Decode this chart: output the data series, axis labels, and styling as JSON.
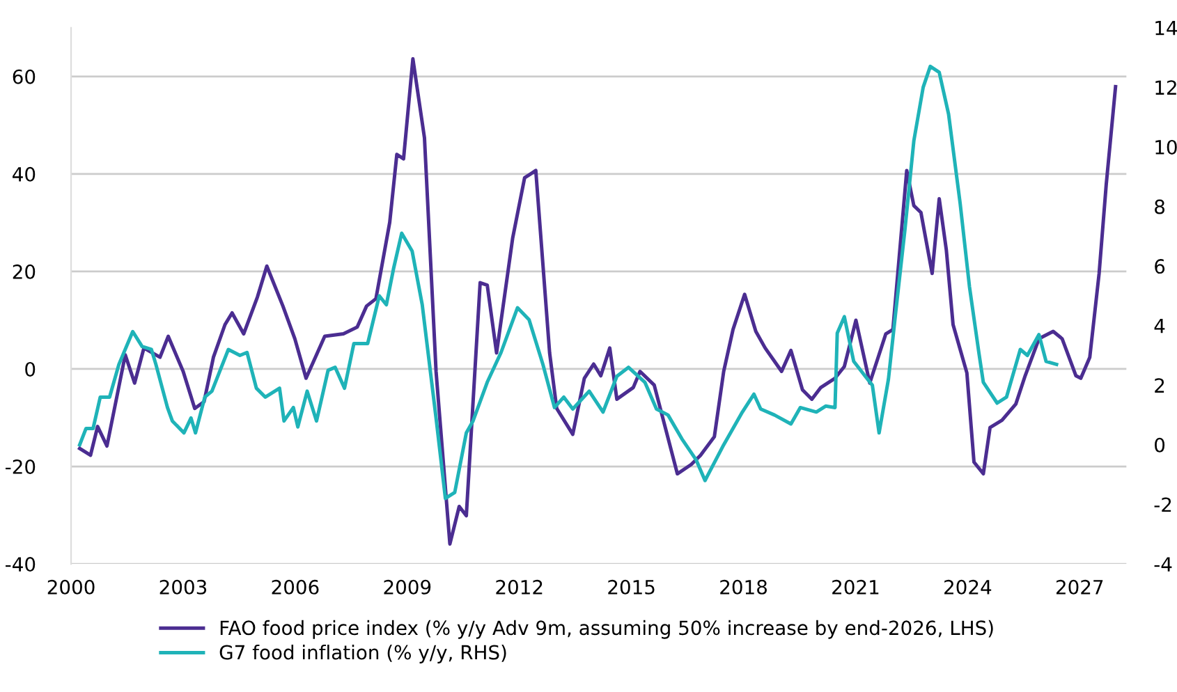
{
  "chart_data": {
    "type": "line",
    "xlim": [
      2000,
      2028.25
    ],
    "xticks": [
      2000,
      2003,
      2006,
      2009,
      2012,
      2015,
      2018,
      2021,
      2024,
      2027
    ],
    "ylim": [
      -40,
      70
    ],
    "yticks": [
      -40,
      -20,
      0,
      20,
      40,
      60
    ],
    "y2lim": [
      -4,
      14
    ],
    "y2ticks": [
      -4,
      -2,
      0,
      2,
      4,
      6,
      8,
      10,
      12,
      14
    ],
    "grid": "y",
    "legend": "bottom",
    "line_style": "solid",
    "marker": "none",
    "series": [
      {
        "name": "FAO food price index (% y/y Adv 9m, assuming 50% increase by end-2026, LHS)",
        "color": "#4b2d91",
        "x": [
          2000.23,
          2000.52,
          2000.71,
          2000.96,
          2001.45,
          2001.7,
          2001.95,
          2002.38,
          2002.6,
          2003.0,
          2003.31,
          2003.56,
          2003.81,
          2004.12,
          2004.31,
          2004.62,
          2004.99,
          2005.24,
          2005.67,
          2005.99,
          2006.29,
          2006.79,
          2007.29,
          2007.66,
          2007.91,
          2008.16,
          2008.53,
          2008.72,
          2008.9,
          2009.15,
          2009.46,
          2009.77,
          2010.14,
          2010.39,
          2010.58,
          2010.95,
          2011.14,
          2011.39,
          2011.82,
          2012.14,
          2012.44,
          2012.81,
          2013.0,
          2013.43,
          2013.74,
          2013.99,
          2014.18,
          2014.42,
          2014.61,
          2015.05,
          2015.23,
          2015.61,
          2016.23,
          2016.6,
          2016.85,
          2017.22,
          2017.47,
          2017.72,
          2018.03,
          2018.33,
          2018.58,
          2019.02,
          2019.27,
          2019.58,
          2019.83,
          2020.07,
          2020.45,
          2020.7,
          2021.01,
          2021.38,
          2021.81,
          2022.0,
          2022.37,
          2022.56,
          2022.75,
          2023.05,
          2023.24,
          2023.43,
          2023.61,
          2023.98,
          2024.17,
          2024.42,
          2024.6,
          2024.92,
          2025.29,
          2025.54,
          2025.91,
          2026.29,
          2026.53,
          2026.9,
          2027.03,
          2027.27,
          2027.52,
          2027.71,
          2027.96
        ],
        "values": [
          -16.3,
          -17.7,
          -11.8,
          -15.8,
          2.9,
          -2.9,
          4.3,
          2.4,
          6.7,
          -0.5,
          -8.1,
          -6.7,
          2.4,
          9.1,
          11.5,
          7.2,
          14.8,
          21.1,
          12.9,
          6.2,
          -1.9,
          6.7,
          7.2,
          8.6,
          12.9,
          14.4,
          30.1,
          44.0,
          43.1,
          63.6,
          47.4,
          -0.5,
          -35.9,
          -28.2,
          -30.1,
          17.7,
          17.2,
          3.3,
          26.8,
          39.2,
          40.7,
          3.3,
          -8.1,
          -13.4,
          -1.9,
          1.0,
          -1.4,
          4.3,
          -6.2,
          -3.8,
          -0.5,
          -3.3,
          -21.5,
          -19.6,
          -17.7,
          -13.9,
          -0.5,
          8.1,
          15.3,
          7.7,
          4.3,
          -0.5,
          3.8,
          -4.3,
          -6.2,
          -3.8,
          -1.9,
          0.5,
          10.0,
          -2.9,
          7.2,
          8.1,
          40.7,
          33.5,
          32.1,
          19.6,
          34.9,
          24.4,
          9.1,
          -0.8,
          -19.1,
          -21.5,
          -12.0,
          -10.5,
          -7.2,
          -1.4,
          6.2,
          7.7,
          6.2,
          -1.4,
          -1.9,
          2.4,
          19.6,
          37.8,
          57.9
        ]
      },
      {
        "name": "G7 food inflation (% y/y, RHS)",
        "color": "#1fb3b8",
        "axis": "y2",
        "x": [
          2000.23,
          2000.4,
          2000.59,
          2000.78,
          2001.03,
          2001.28,
          2001.65,
          2001.9,
          2002.15,
          2002.27,
          2002.58,
          2002.71,
          2003.02,
          2003.21,
          2003.33,
          2003.58,
          2003.77,
          2004.21,
          2004.52,
          2004.71,
          2004.96,
          2005.2,
          2005.58,
          2005.7,
          2005.95,
          2006.07,
          2006.32,
          2006.57,
          2006.88,
          2007.07,
          2007.32,
          2007.57,
          2007.94,
          2008.25,
          2008.44,
          2008.63,
          2008.85,
          2009.13,
          2009.4,
          2009.77,
          2010.02,
          2010.27,
          2010.58,
          2010.76,
          2011.14,
          2011.51,
          2011.95,
          2012.26,
          2012.63,
          2012.94,
          2013.19,
          2013.43,
          2013.87,
          2014.24,
          2014.61,
          2014.92,
          2015.36,
          2015.67,
          2015.98,
          2016.35,
          2016.73,
          2016.97,
          2017.47,
          2017.97,
          2018.28,
          2018.46,
          2018.83,
          2019.27,
          2019.52,
          2019.95,
          2020.2,
          2020.45,
          2020.51,
          2020.7,
          2020.95,
          2021.26,
          2021.45,
          2021.63,
          2021.88,
          2022.07,
          2022.32,
          2022.56,
          2022.81,
          2023.0,
          2023.24,
          2023.49,
          2023.8,
          2024.05,
          2024.3,
          2024.42,
          2024.79,
          2025.04,
          2025.41,
          2025.6,
          2025.91,
          2026.1,
          2026.38
        ],
        "values": [
          0.0,
          0.55,
          0.55,
          1.6,
          1.6,
          2.7,
          3.8,
          3.3,
          3.2,
          2.7,
          1.25,
          0.8,
          0.4,
          0.9,
          0.4,
          1.6,
          1.8,
          3.2,
          3.0,
          3.1,
          1.9,
          1.6,
          1.9,
          0.8,
          1.25,
          0.6,
          1.8,
          0.8,
          2.5,
          2.6,
          1.9,
          3.4,
          3.4,
          5.0,
          4.7,
          5.9,
          7.1,
          6.5,
          4.7,
          0.9,
          -1.8,
          -1.6,
          0.4,
          0.8,
          2.1,
          3.1,
          4.6,
          4.2,
          2.7,
          1.25,
          1.6,
          1.2,
          1.8,
          1.1,
          2.3,
          2.6,
          2.1,
          1.2,
          1.0,
          0.2,
          -0.5,
          -1.2,
          0.0,
          1.1,
          1.7,
          1.2,
          1.0,
          0.7,
          1.25,
          1.1,
          1.3,
          1.25,
          3.75,
          4.3,
          2.8,
          2.3,
          2.0,
          0.4,
          2.2,
          4.4,
          7.2,
          10.2,
          12.0,
          12.7,
          12.5,
          11.1,
          8.1,
          5.3,
          3.1,
          2.1,
          1.4,
          1.6,
          3.2,
          3.0,
          3.7,
          2.8,
          2.7
        ]
      }
    ]
  }
}
